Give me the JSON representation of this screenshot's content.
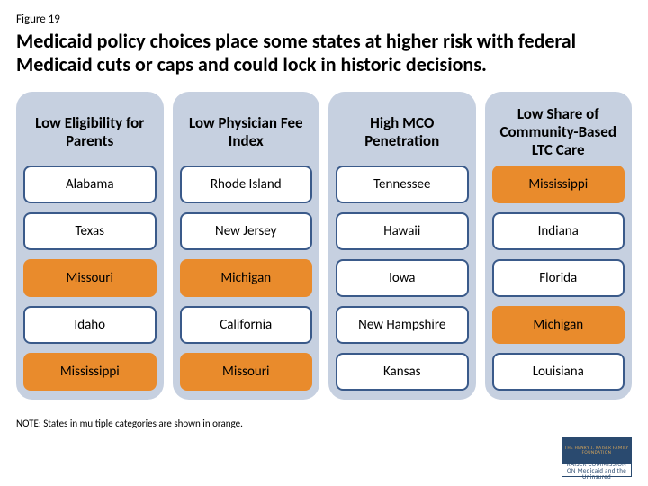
{
  "figure_label": "Figure 19",
  "title": "Medicaid policy choices place some states at higher risk with federal Medicaid cuts or caps and could lock in historic decisions.",
  "note": "NOTE: States in multiple categories are shown in orange.",
  "highlight_color": "#e98b2c",
  "panel_bg": "#c6d0e0",
  "cell_border": "#3a5a8a",
  "columns": [
    {
      "header": "Low Eligibility for Parents",
      "cells": [
        {
          "label": "Alabama",
          "highlight": false
        },
        {
          "label": "Texas",
          "highlight": false
        },
        {
          "label": "Missouri",
          "highlight": true
        },
        {
          "label": "Idaho",
          "highlight": false
        },
        {
          "label": "Mississippi",
          "highlight": true
        }
      ]
    },
    {
      "header": "Low Physician Fee Index",
      "cells": [
        {
          "label": "Rhode Island",
          "highlight": false
        },
        {
          "label": "New Jersey",
          "highlight": false
        },
        {
          "label": "Michigan",
          "highlight": true
        },
        {
          "label": "California",
          "highlight": false
        },
        {
          "label": "Missouri",
          "highlight": true
        }
      ]
    },
    {
      "header": "High MCO Penetration",
      "cells": [
        {
          "label": "Tennessee",
          "highlight": false
        },
        {
          "label": "Hawaii",
          "highlight": false
        },
        {
          "label": "Iowa",
          "highlight": false
        },
        {
          "label": "New Hampshire",
          "highlight": false
        },
        {
          "label": "Kansas",
          "highlight": false
        }
      ]
    },
    {
      "header": "Low Share of Community-Based LTC Care",
      "cells": [
        {
          "label": "Mississippi",
          "highlight": true
        },
        {
          "label": "Indiana",
          "highlight": false
        },
        {
          "label": "Florida",
          "highlight": false
        },
        {
          "label": "Michigan",
          "highlight": true
        },
        {
          "label": "Louisiana",
          "highlight": false
        }
      ]
    }
  ],
  "logo": {
    "top_text": "THE HENRY J. KAISER FAMILY FOUNDATION",
    "bottom_text": "KAISER COMMISSION ON Medicaid and the Uninsured"
  }
}
